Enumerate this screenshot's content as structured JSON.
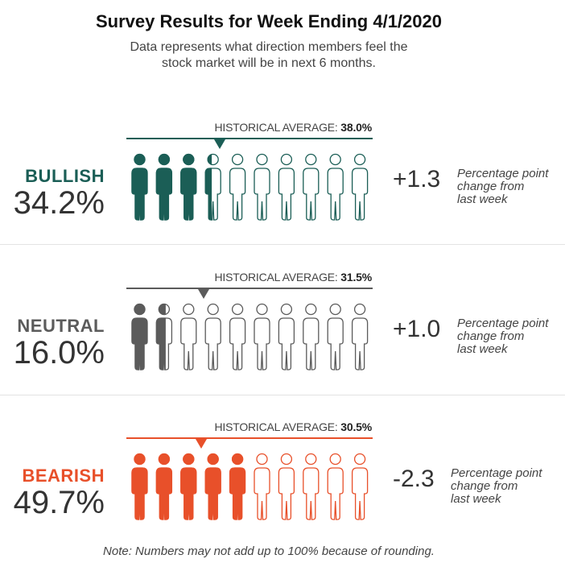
{
  "title": "Survey Results for Week Ending 4/1/2020",
  "subtitle_line1": "Data represents what direction members feel the",
  "subtitle_line2": "stock market will be in next 6 months.",
  "note": "Note: Numbers may not add up to 100% because of rounding.",
  "chart_data": {
    "type": "pictograph",
    "title": "Survey Results for Week Ending 4/1/2020",
    "icons_per_row": 10,
    "scale_max_percent": 100,
    "categories": [
      {
        "label": "BULLISH",
        "percent_text": "34.2%",
        "value": 34.2,
        "historical_label": "HISTORICAL AVERAGE:",
        "historical_text": "38.0%",
        "historical_value": 38.0,
        "change_text": "+1.3",
        "change_value": 1.3,
        "change_desc_1": "Percentage point",
        "change_desc_2": "change from",
        "change_desc_3": "last week",
        "color": "#1b5e56"
      },
      {
        "label": "NEUTRAL",
        "percent_text": "16.0%",
        "value": 16.0,
        "historical_label": "HISTORICAL AVERAGE:",
        "historical_text": "31.5%",
        "historical_value": 31.5,
        "change_text": "+1.0",
        "change_value": 1.0,
        "change_desc_1": "Percentage point",
        "change_desc_2": "change from",
        "change_desc_3": "last week",
        "color": "#5b5b5b"
      },
      {
        "label": "BEARISH",
        "percent_text": "49.7%",
        "value": 49.7,
        "historical_label": "HISTORICAL AVERAGE:",
        "historical_text": "30.5%",
        "historical_value": 30.5,
        "change_text": "-2.3",
        "change_value": -2.3,
        "change_desc_1": "Percentage point",
        "change_desc_2": "change from",
        "change_desc_3": "last week",
        "color": "#e8502a"
      }
    ]
  }
}
